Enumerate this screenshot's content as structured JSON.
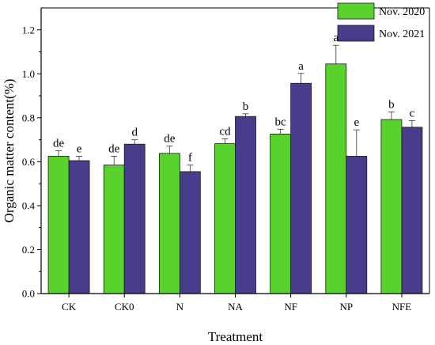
{
  "chart_data": {
    "type": "bar",
    "xlabel": "Treatment",
    "ylabel": "Organic matter content(%)",
    "ylim": [
      0.0,
      1.3
    ],
    "yticks": [
      0.0,
      0.2,
      0.4,
      0.6,
      0.8,
      1.0,
      1.2
    ],
    "ytick_labels": [
      "0.0",
      "0.2",
      "0.4",
      "0.6",
      "0.8",
      "1.0",
      "1.2"
    ],
    "categories": [
      "CK",
      "CK0",
      "N",
      "NA",
      "NF",
      "NP",
      "NFE"
    ],
    "legend_position": "top-right",
    "grid": false,
    "series": [
      {
        "name": "Nov. 2020",
        "color": "#5ad22e",
        "label_color": "#3cb83c",
        "values": [
          0.625,
          0.585,
          0.638,
          0.682,
          0.726,
          1.045,
          0.792
        ],
        "errors": [
          0.025,
          0.04,
          0.033,
          0.022,
          0.022,
          0.085,
          0.035
        ],
        "sig_labels": [
          "de",
          "de",
          "de",
          "cd",
          "bc",
          "a",
          "b"
        ]
      },
      {
        "name": "Nov. 2021",
        "color": "#483d8b",
        "label_color": "#2e4d9b",
        "values": [
          0.605,
          0.68,
          0.555,
          0.806,
          0.957,
          0.625,
          0.757
        ],
        "errors": [
          0.02,
          0.02,
          0.03,
          0.012,
          0.045,
          0.12,
          0.03
        ],
        "sig_labels": [
          "e",
          "d",
          "f",
          "b",
          "a",
          "e",
          "c"
        ]
      }
    ]
  }
}
